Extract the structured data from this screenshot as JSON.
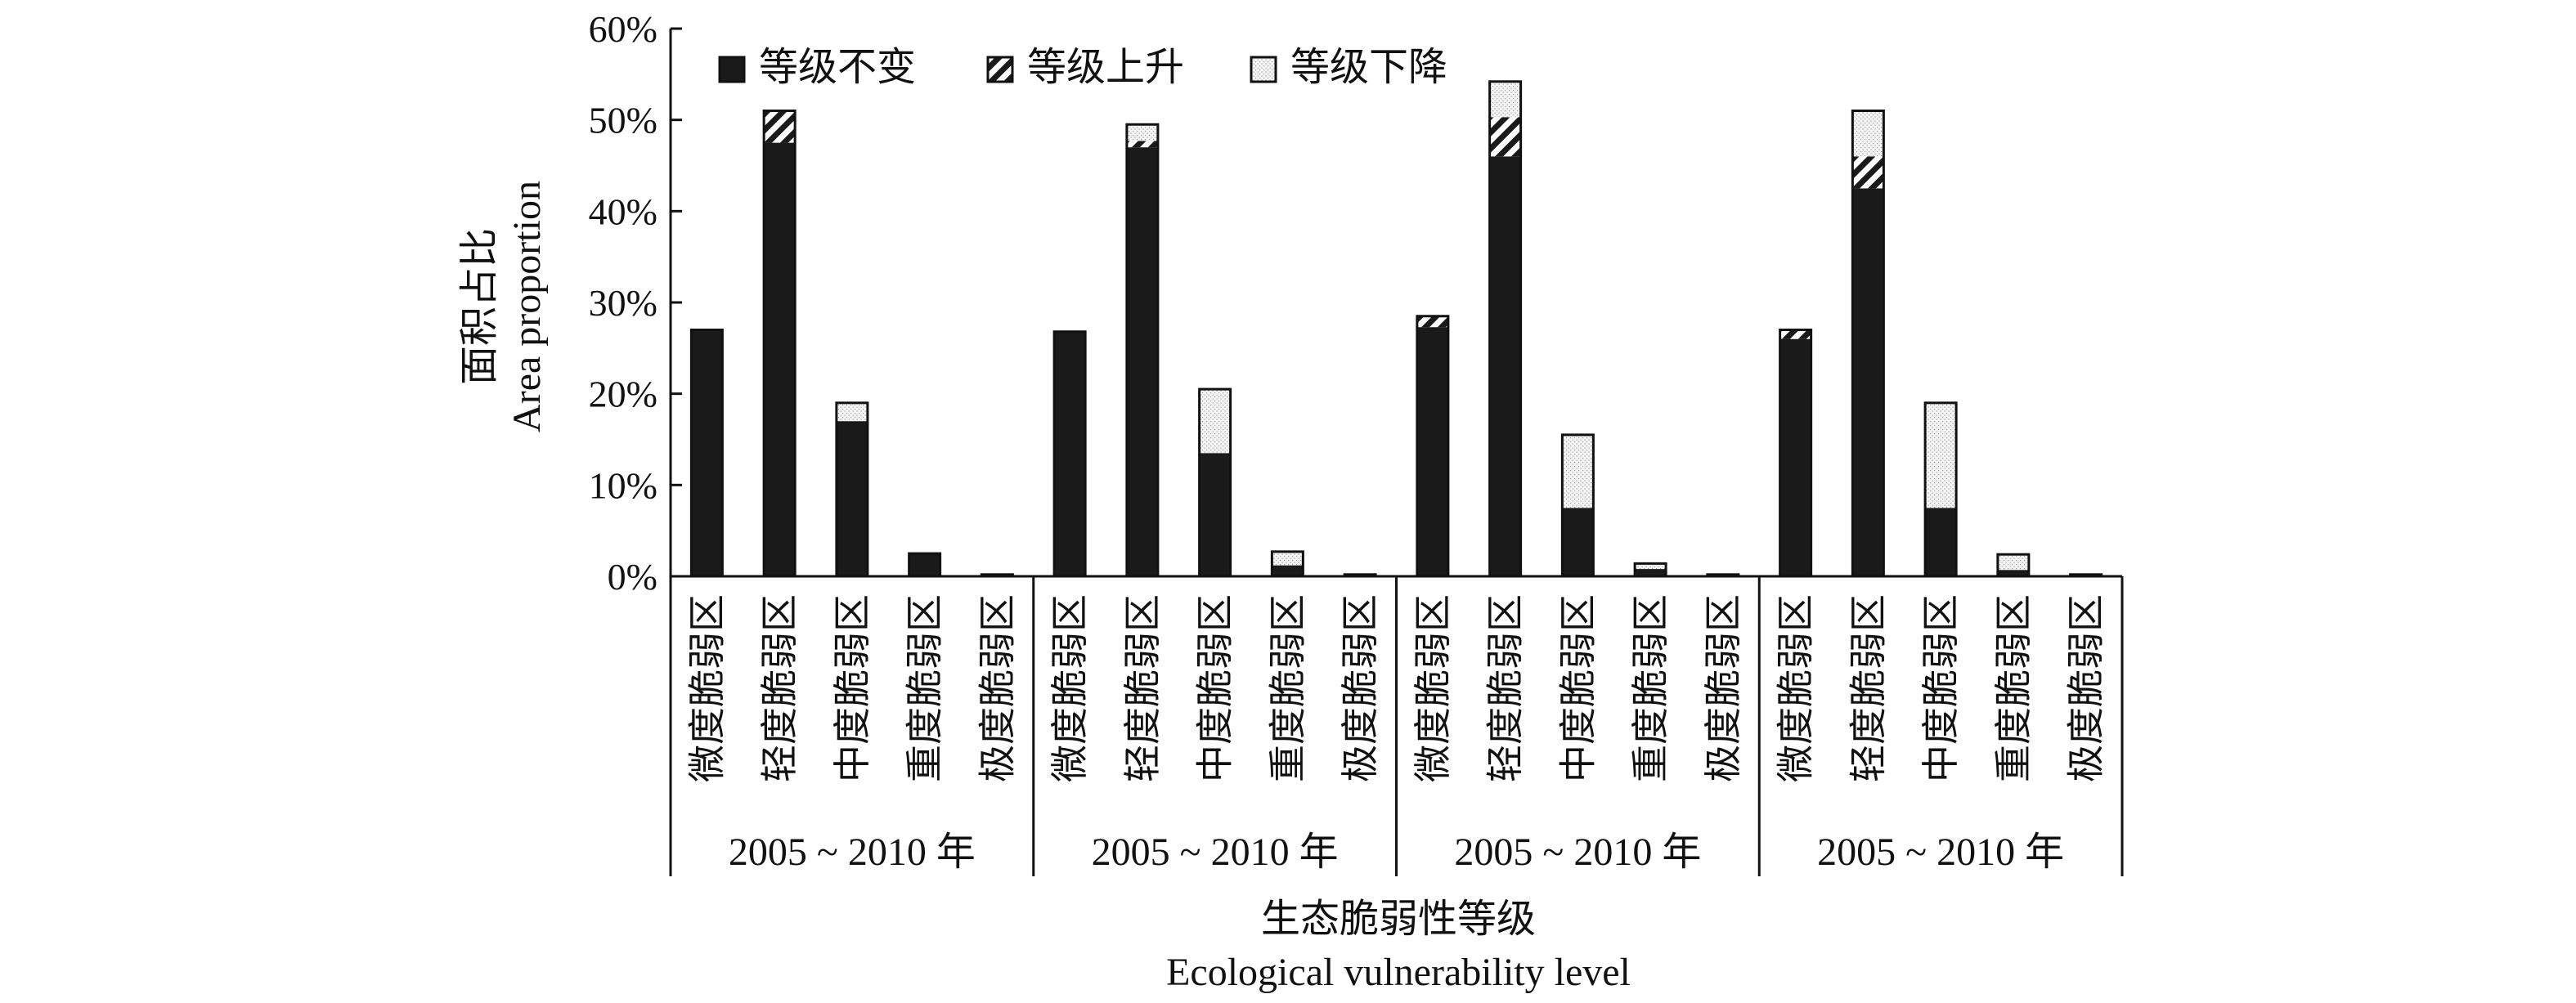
{
  "chart_data": {
    "type": "bar",
    "stacked": true,
    "title": "",
    "ylabel_cn": "面积占比",
    "ylabel_en": "Area proportion",
    "xlabel_cn": "生态脆弱性等级",
    "xlabel_en": "Ecological vulnerability level",
    "ylim": [
      0,
      60
    ],
    "y_ticks": [
      "0%",
      "10%",
      "20%",
      "30%",
      "40%",
      "50%",
      "60%"
    ],
    "y_tick_values": [
      0,
      10,
      20,
      30,
      40,
      50,
      60
    ],
    "legend_placement": "top-left",
    "grid": false,
    "groups": [
      "2005 ~ 2010 年",
      "2005 ~ 2010 年",
      "2005 ~ 2010 年",
      "2005 ~ 2010 年"
    ],
    "categories": [
      "微度脆弱区",
      "轻度脆弱区",
      "中度脆弱区",
      "重度脆弱区",
      "极度脆弱区"
    ],
    "series": [
      {
        "name": "等级不变",
        "color": "#1a1a1a",
        "pattern": "solid",
        "values": [
          [
            27.0,
            47.5,
            17.0,
            2.5,
            0.2
          ],
          [
            26.8,
            47.0,
            13.5,
            1.2,
            0.2
          ],
          [
            27.3,
            46.0,
            7.5,
            0.8,
            0.2
          ],
          [
            26.0,
            42.5,
            7.5,
            0.7,
            0.2
          ]
        ]
      },
      {
        "name": "等级上升",
        "color": "#1a1a1a",
        "pattern": "hatch",
        "values": [
          [
            0.0,
            3.5,
            0.0,
            0.0,
            0.0
          ],
          [
            0.0,
            0.7,
            0.0,
            0.0,
            0.0
          ],
          [
            1.2,
            4.3,
            0.0,
            0.0,
            0.0
          ],
          [
            1.0,
            3.5,
            0.0,
            0.0,
            0.0
          ]
        ]
      },
      {
        "name": "等级下降",
        "color": "#ffffff",
        "pattern": "dotted",
        "values": [
          [
            0.0,
            0.0,
            2.0,
            0.0,
            0.0
          ],
          [
            0.0,
            1.8,
            7.0,
            1.5,
            0.0
          ],
          [
            0.0,
            3.9,
            8.0,
            0.6,
            0.0
          ],
          [
            0.0,
            5.0,
            11.5,
            1.7,
            0.0
          ]
        ]
      }
    ]
  }
}
